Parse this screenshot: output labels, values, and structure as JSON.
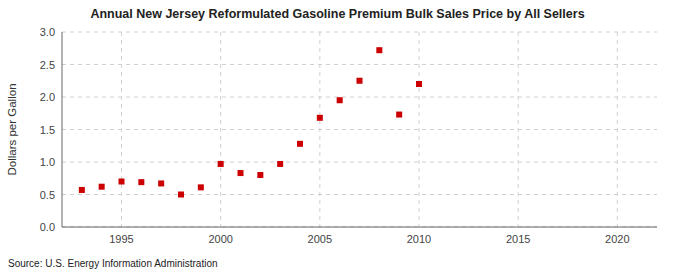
{
  "chart_data": {
    "type": "scatter",
    "title": "Annual New Jersey Reformulated Gasoline Premium Bulk Sales Price by All Sellers",
    "ylabel": "Dollars per Gallon",
    "annotations": [
      "Source: U.S. Energy Information Administration"
    ],
    "x": [
      1993,
      1994,
      1995,
      1996,
      1997,
      1998,
      1999,
      2000,
      2001,
      2002,
      2003,
      2004,
      2005,
      2006,
      2007,
      2008,
      2009,
      2010
    ],
    "values": [
      0.57,
      0.62,
      0.7,
      0.69,
      0.67,
      0.5,
      0.61,
      0.97,
      0.83,
      0.8,
      0.97,
      1.28,
      1.68,
      1.95,
      2.25,
      2.72,
      1.73,
      2.2
    ],
    "color": "#cc0000",
    "marker": "square",
    "xlim": [
      1992,
      2022
    ],
    "ylim": [
      0.0,
      3.0
    ],
    "xticks": [
      1995,
      2000,
      2005,
      2010,
      2015,
      2020
    ],
    "yticks": [
      {
        "value": 0,
        "label": "0.0"
      },
      0.5,
      {
        "value": 1,
        "label": "1.0"
      },
      1.5,
      {
        "value": 2,
        "label": "2.0"
      },
      2.5,
      {
        "value": 3,
        "label": "3.0"
      }
    ],
    "grid": true
  }
}
